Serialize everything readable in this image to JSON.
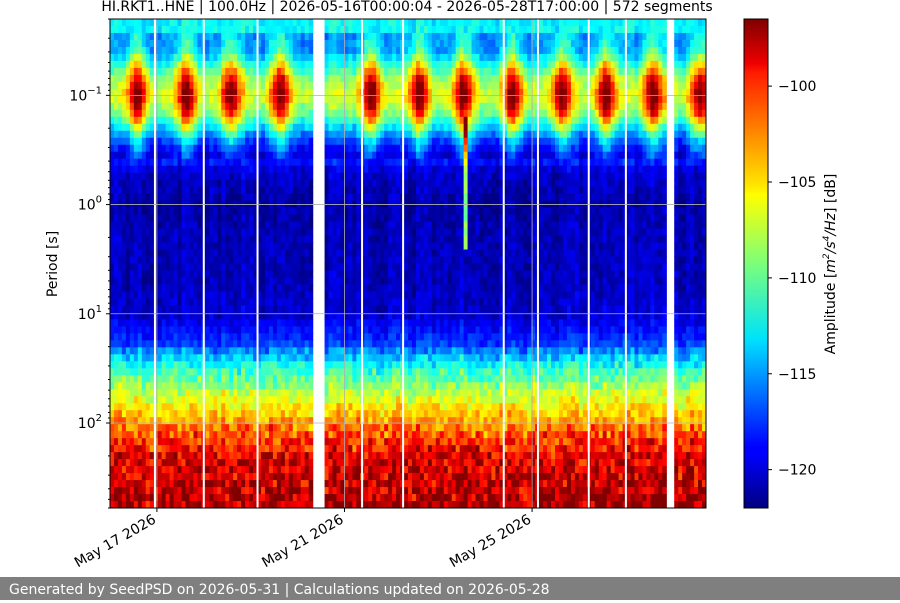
{
  "chart_data": {
    "type": "heatmap",
    "title": "HI.RKT1..HNE | 100.0Hz | 2026-05-16T00:00:04 - 2026-05-28T17:00:00 | 572 segments",
    "xlabel": "",
    "ylabel": "Period [s]",
    "y_scale": "log",
    "y_inverted": true,
    "xlim": [
      "2026-05-16T00:00:04",
      "2026-05-28T17:00:00"
    ],
    "ylim_period_s": [
      0.02,
      600
    ],
    "x_ticks": [
      "May 17 2026",
      "May 21 2026",
      "May 25 2026"
    ],
    "x_tick_dates": [
      "2026-05-17",
      "2026-05-21",
      "2026-05-25"
    ],
    "y_ticks": [
      {
        "base": "10",
        "exp": "−1",
        "value": 0.1
      },
      {
        "base": "10",
        "exp": "0",
        "value": 1
      },
      {
        "base": "10",
        "exp": "1",
        "value": 10
      },
      {
        "base": "10",
        "exp": "2",
        "value": 100
      }
    ],
    "grid": true,
    "colorbar": {
      "label_prefix": "Amplitude [",
      "label_unit": "m",
      "label_sup1": "2",
      "label_mid": "/s",
      "label_sup2": "4",
      "label_end": "/Hz",
      "label_suffix": "] [dB]",
      "range_db": [
        -122,
        -96.5
      ],
      "ticks": [
        "−100",
        "−105",
        "−110",
        "−115",
        "−120"
      ],
      "tick_values": [
        -100,
        -105,
        -110,
        -115,
        -120
      ],
      "colormap": "jet"
    },
    "profile": {
      "note_units": "period in seconds → typical amplitude in dB",
      "period_s": [
        0.02,
        0.04,
        0.07,
        0.1,
        0.15,
        0.25,
        0.5,
        1,
        2,
        5,
        10,
        20,
        30,
        50,
        100,
        200,
        600
      ],
      "amplitude_db": [
        -112.5,
        -112,
        -106,
        -104,
        -107,
        -114,
        -120,
        -121,
        -120.5,
        -120.5,
        -120,
        -117,
        -112.5,
        -108.5,
        -104,
        -100,
        -98.5
      ]
    },
    "gaps": [
      {
        "start": "2026-05-20T08:30",
        "end": "2026-05-20T13:30"
      },
      {
        "start": "2026-05-27T22:00",
        "end": "2026-05-28T00:00"
      }
    ],
    "thin_gaps": [
      "2026-05-16T23:00",
      "2026-05-18T00:00",
      "2026-05-19T03:30",
      "2026-05-21T09:00",
      "2026-05-22T06:00",
      "2026-05-24T09:30",
      "2026-05-25T03:00",
      "2026-05-26T05:00",
      "2026-05-27T00:00"
    ],
    "diurnal_maxima": [
      "2026-05-16T14:00",
      "2026-05-17T15:00",
      "2026-05-18T14:00",
      "2026-05-19T15:00",
      "2026-05-21T14:00",
      "2026-05-22T14:00",
      "2026-05-23T13:00",
      "2026-05-24T14:00",
      "2026-05-25T15:00",
      "2026-05-26T14:00",
      "2026-05-27T14:00",
      "2026-05-28T14:00"
    ],
    "events": [
      {
        "time": "2026-05-23T14:00",
        "period_range_s": [
          0.15,
          2.5
        ]
      }
    ]
  },
  "footer": {
    "text": "Generated by SeedPSD on 2026-05-31 | Calculations updated on 2026-05-28"
  }
}
